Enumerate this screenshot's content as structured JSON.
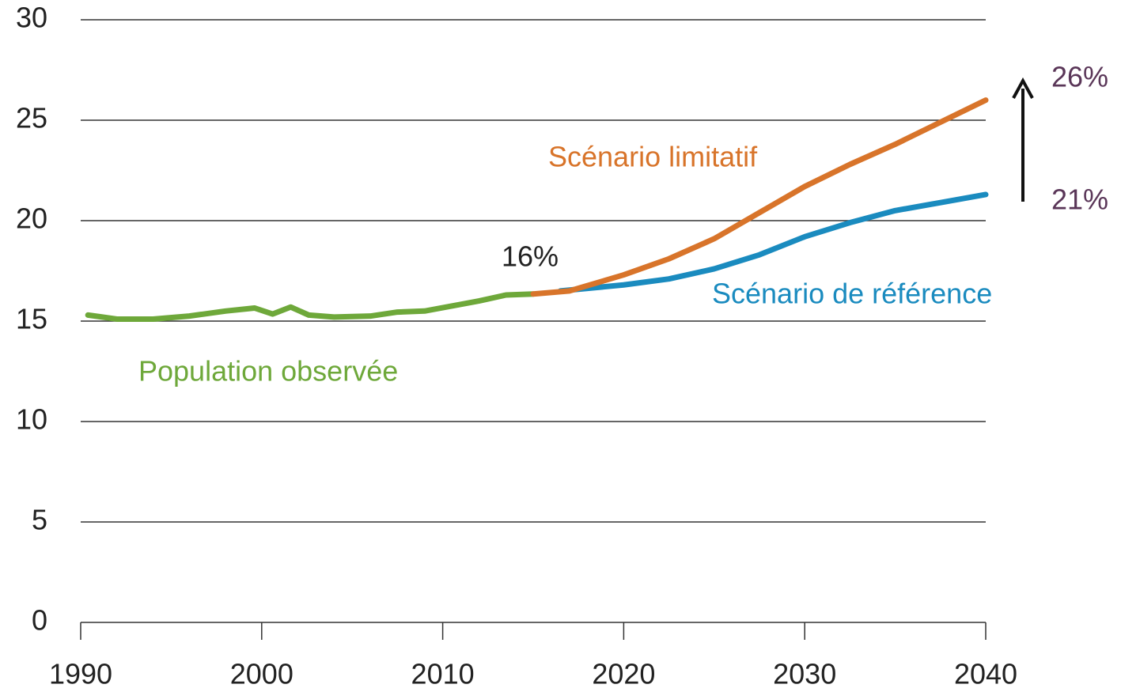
{
  "chart_data": {
    "type": "line",
    "xlim": [
      1990,
      2040
    ],
    "xticks": [
      1990,
      2000,
      2010,
      2020,
      2030,
      2040
    ],
    "ylim": [
      0,
      30
    ],
    "yticks": [
      0,
      5,
      10,
      15,
      20,
      25,
      30
    ],
    "grid": true,
    "series": [
      {
        "name": "Population observée",
        "color": "#6ea83a",
        "x": [
          1990.4,
          1992,
          1994,
          1996,
          1998,
          1999.6,
          2000.6,
          2001.6,
          2002.6,
          2004,
          2006,
          2007.5,
          2009,
          2010.5,
          2012,
          2013.5,
          2015
        ],
        "values": [
          15.3,
          15.1,
          15.1,
          15.25,
          15.5,
          15.65,
          15.35,
          15.7,
          15.3,
          15.2,
          15.25,
          15.45,
          15.5,
          15.75,
          16.0,
          16.3,
          16.35
        ]
      },
      {
        "name": "Scénario de référence",
        "color": "#1a8bbf",
        "x": [
          2016.5,
          2020,
          2022.5,
          2025,
          2027.5,
          2030,
          2032.5,
          2035,
          2037.5,
          2040
        ],
        "values": [
          16.5,
          16.8,
          17.1,
          17.6,
          18.3,
          19.2,
          19.9,
          20.5,
          20.9,
          21.3
        ]
      },
      {
        "name": "Scénario limitatif",
        "color": "#d8742a",
        "x": [
          2015,
          2017,
          2020,
          2022.5,
          2025,
          2027.5,
          2030,
          2032.5,
          2035,
          2037.5,
          2040
        ],
        "values": [
          16.35,
          16.5,
          17.3,
          18.1,
          19.1,
          20.4,
          21.7,
          22.8,
          23.8,
          24.9,
          26.0
        ]
      }
    ],
    "annotations": [
      "16%",
      "26%",
      "21%"
    ]
  }
}
